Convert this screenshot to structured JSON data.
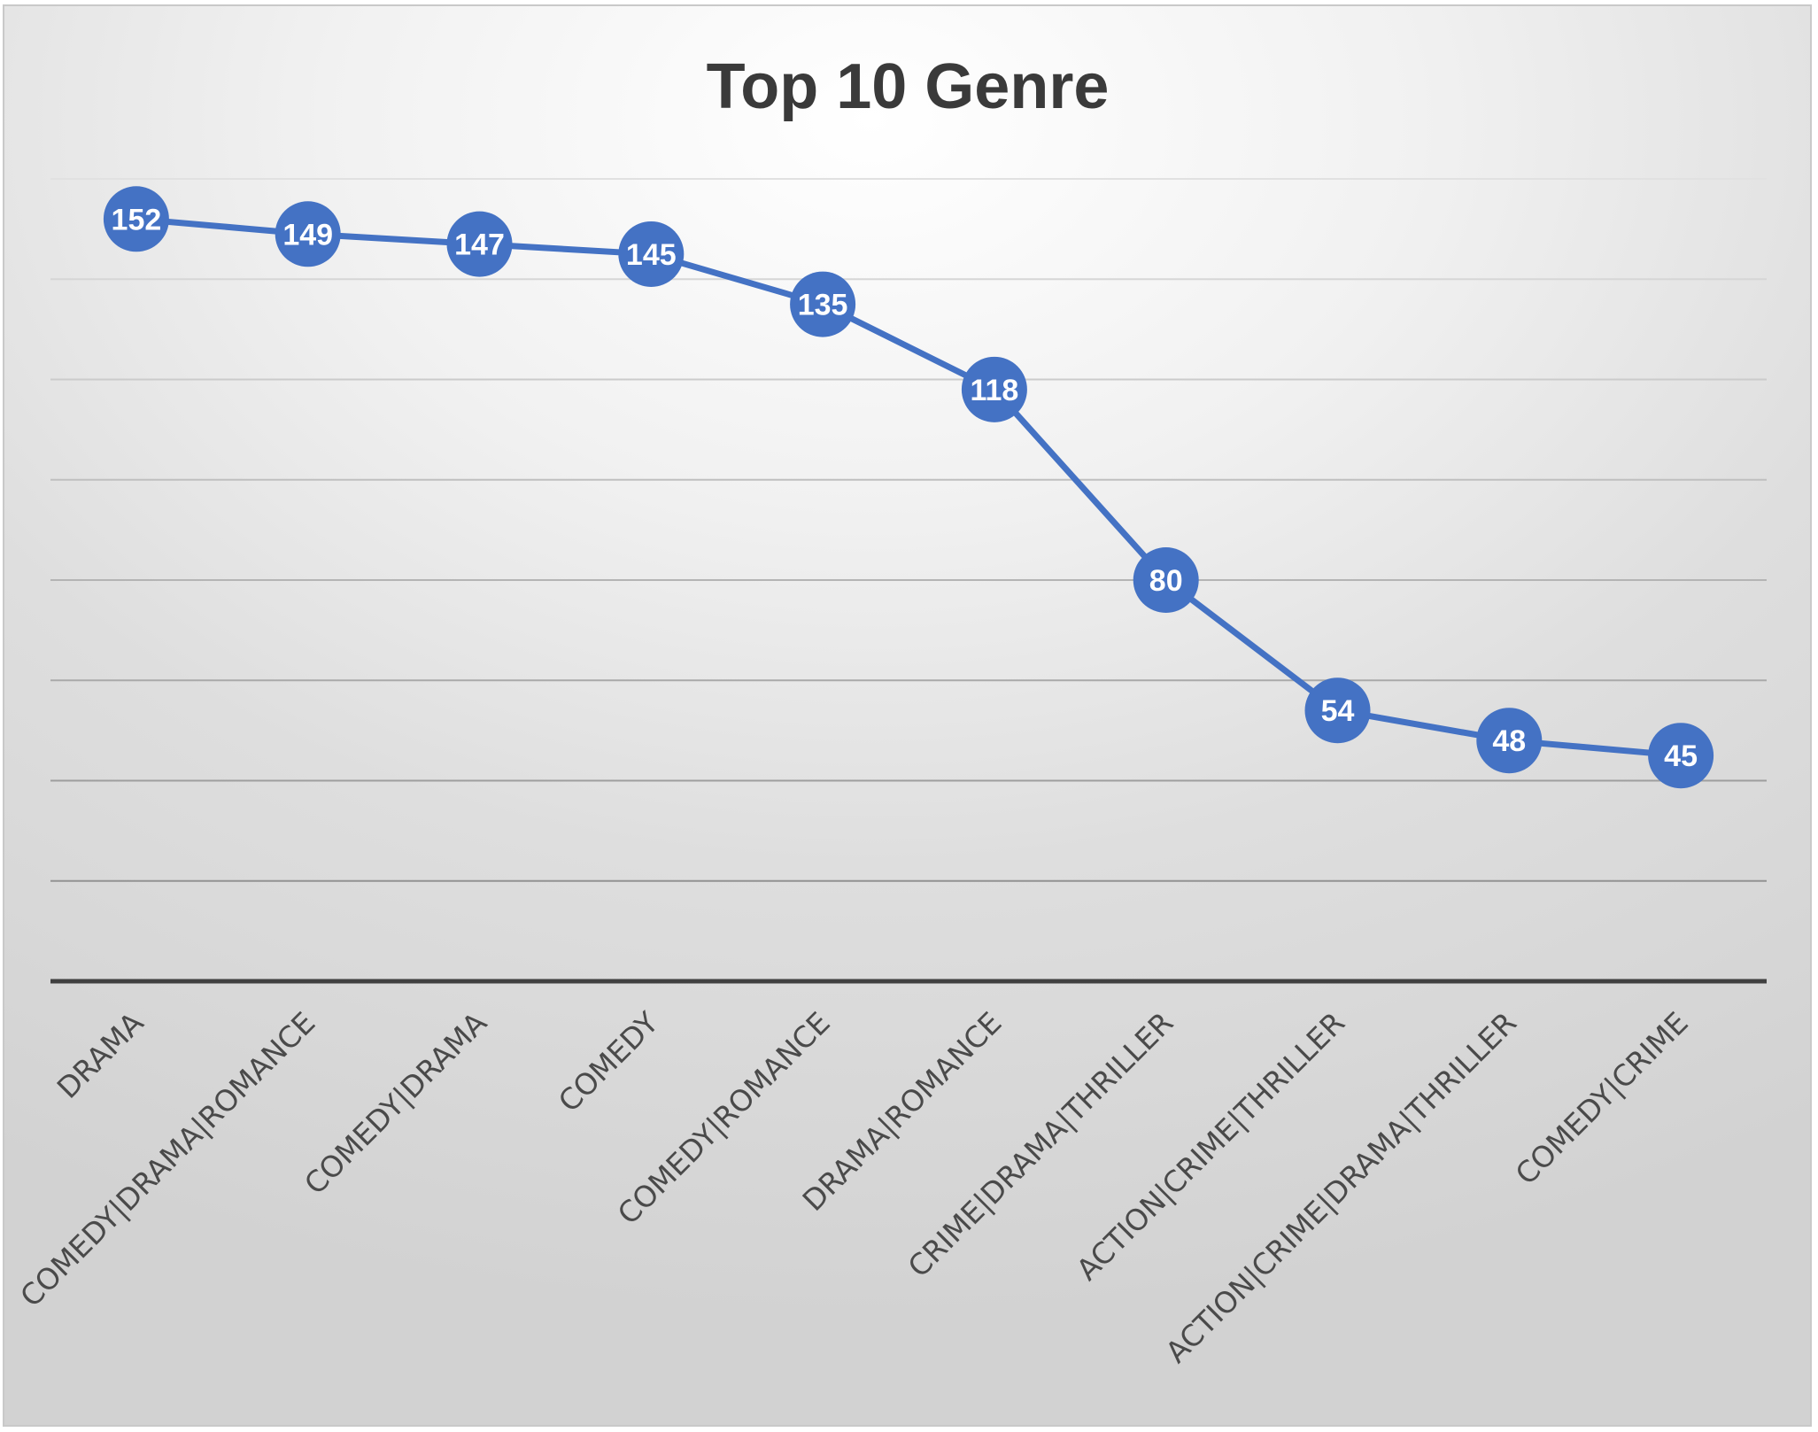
{
  "chart_data": {
    "type": "line",
    "title": "Top 10 Genre",
    "xlabel": "",
    "ylabel": "",
    "categories": [
      "DRAMA",
      "COMEDY|DRAMA|ROMANCE",
      "COMEDY|DRAMA",
      "COMEDY",
      "COMEDY|ROMANCE",
      "DRAMA|ROMANCE",
      "CRIME|DRAMA|THRILLER",
      "ACTION|CRIME|THRILLER",
      "ACTION|CRIME|DRAMA|THRILLER",
      "COMEDY|CRIME"
    ],
    "series": [
      {
        "values": [
          152,
          149,
          147,
          145,
          135,
          118,
          80,
          54,
          48,
          45
        ],
        "color": "#4472c4"
      }
    ],
    "ylim": [
      0,
      160
    ],
    "grid": true,
    "legend": "none",
    "data_labels": true,
    "y_tick_labels_shown": false
  }
}
